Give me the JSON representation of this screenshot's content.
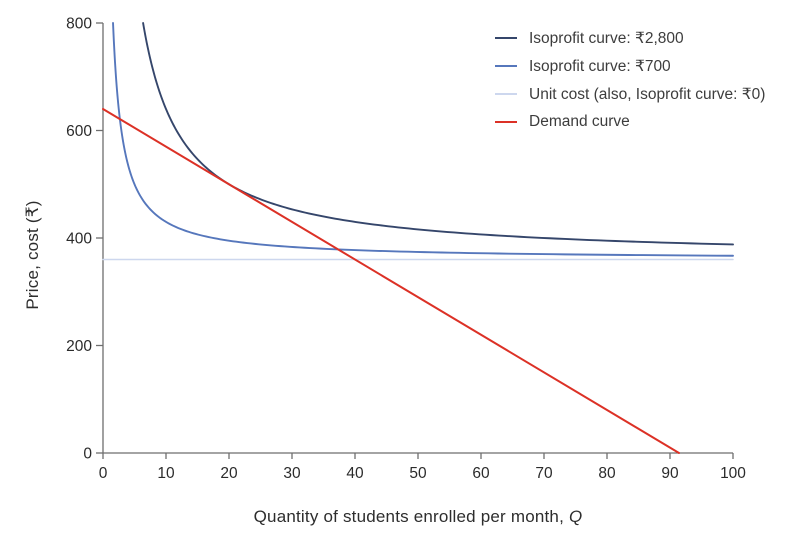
{
  "chart_data": {
    "type": "line",
    "title": "",
    "xlabel": "Quantity of students enrolled per month, ",
    "xlabel_italic_suffix": "Q",
    "ylabel": "Price, cost (₹)",
    "xlim": [
      0,
      100
    ],
    "ylim": [
      0,
      800
    ],
    "xticks": [
      0,
      10,
      20,
      30,
      40,
      50,
      60,
      70,
      80,
      90,
      100
    ],
    "yticks": [
      0,
      200,
      400,
      600,
      800
    ],
    "grid": false,
    "legend_position": "top-right-inside",
    "axis_color": "#6e6e6e",
    "tick_label_color": "#2b2b2b",
    "series": [
      {
        "name": "isoprofit-2800",
        "label": "Isoprofit curve: ₹2,800",
        "color": "#35466b",
        "kind": "hyperbola",
        "equation": "P = 360 + 2800/Q",
        "params": {
          "base": 360,
          "profit": 2800
        },
        "domain": [
          6.3636,
          100
        ],
        "key_points": [
          [
            6.36,
            800
          ],
          [
            10,
            640
          ],
          [
            20,
            500
          ],
          [
            40,
            430
          ],
          [
            70,
            400
          ],
          [
            100,
            388
          ]
        ]
      },
      {
        "name": "isoprofit-700",
        "label": "Isoprofit curve: ₹700",
        "color": "#5677bc",
        "kind": "hyperbola",
        "equation": "P = 360 + 700/Q",
        "params": {
          "base": 360,
          "profit": 700
        },
        "domain": [
          1.5909,
          100
        ],
        "key_points": [
          [
            1.59,
            800
          ],
          [
            5,
            500
          ],
          [
            10,
            430
          ],
          [
            20,
            395
          ],
          [
            50,
            374
          ],
          [
            100,
            367
          ]
        ]
      },
      {
        "name": "unit-cost",
        "label": "Unit cost (also, Isoprofit curve: ₹0)",
        "color": "#cdd7ee",
        "kind": "constant",
        "equation": "P = 360",
        "params": {
          "value": 360
        },
        "domain": [
          0,
          100
        ],
        "key_points": [
          [
            0,
            360
          ],
          [
            100,
            360
          ]
        ]
      },
      {
        "name": "demand",
        "label": "Demand curve",
        "color": "#dc3126",
        "kind": "linear",
        "equation": "P = 640 - 7Q",
        "params": {
          "intercept": 640,
          "slope": -7
        },
        "domain": [
          0,
          91.4286
        ],
        "key_points": [
          [
            0,
            640
          ],
          [
            20,
            500
          ],
          [
            40,
            360
          ],
          [
            91.43,
            0
          ]
        ],
        "tangency_point_with_2800_isoprofit": [
          20,
          500
        ]
      }
    ]
  }
}
